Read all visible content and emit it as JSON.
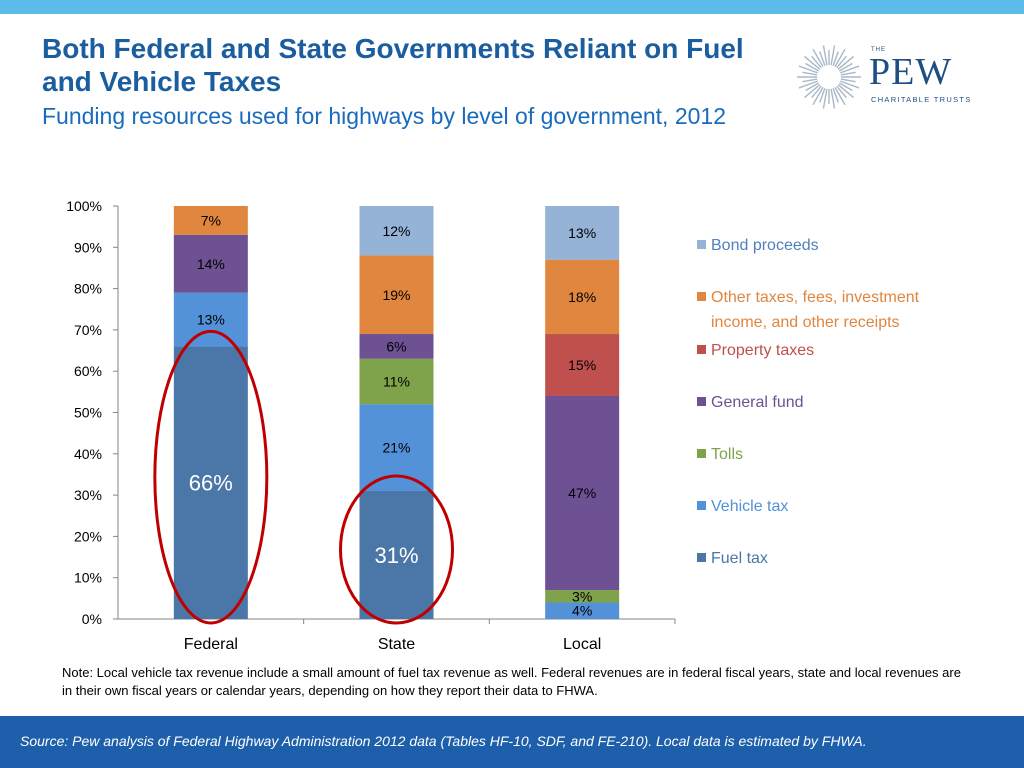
{
  "title": "Both Federal and State Governments Reliant on Fuel and Vehicle Taxes",
  "subtitle": "Funding resources used for highways by level of government, 2012",
  "logo": {
    "the": "THE",
    "name": "PEW",
    "tagline": "CHARITABLE TRUSTS"
  },
  "note": "Note: Local vehicle tax revenue include a small amount of fuel tax revenue as well. Federal revenues are in federal fiscal years, state and local revenues are in their own fiscal years or calendar years, depending on how they report their data to FHWA.",
  "source": "Source: Pew analysis of Federal Highway Administration 2012 data (Tables HF-10, SDF, and FE-210). Local data is estimated by FHWA.",
  "chart_data": {
    "type": "bar",
    "stacked": true,
    "categories": [
      "Federal",
      "State",
      "Local"
    ],
    "y_ticks": [
      "0%",
      "10%",
      "20%",
      "30%",
      "40%",
      "50%",
      "60%",
      "70%",
      "80%",
      "90%",
      "100%"
    ],
    "ylim": [
      0,
      100
    ],
    "legend_position": "right",
    "series": [
      {
        "name": "Fuel tax",
        "color": "#4a76a8",
        "values": [
          66,
          31,
          0
        ],
        "labels": [
          "66%",
          "31%",
          ""
        ]
      },
      {
        "name": "Vehicle tax",
        "color": "#5391d8",
        "values": [
          13,
          21,
          4
        ],
        "labels": [
          "13%",
          "21%",
          "4%"
        ]
      },
      {
        "name": "Tolls",
        "color": "#7fa34a",
        "values": [
          0,
          11,
          3
        ],
        "labels": [
          "",
          "11%",
          "3%"
        ]
      },
      {
        "name": "General fund",
        "color": "#6e5193",
        "values": [
          14,
          6,
          47
        ],
        "labels": [
          "14%",
          "6%",
          "47%"
        ]
      },
      {
        "name": "Property taxes",
        "color": "#c0504d",
        "values": [
          0,
          0,
          15
        ],
        "labels": [
          "",
          "",
          "15%"
        ]
      },
      {
        "name": "Other taxes, fees, investment income, and other receipts",
        "color": "#e0863e",
        "values": [
          7,
          19,
          18
        ],
        "labels": [
          "7%",
          "19%",
          "18%"
        ]
      },
      {
        "name": "Bond proceeds",
        "color": "#95b3d7",
        "values": [
          0,
          12,
          13
        ],
        "labels": [
          "",
          "12%",
          "13%"
        ]
      }
    ],
    "highlighted": [
      "Federal",
      "State"
    ]
  }
}
